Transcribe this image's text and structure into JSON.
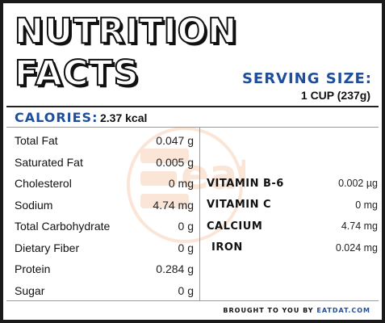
{
  "title": {
    "line1": "NUTRITION",
    "line2": "FACTS"
  },
  "serving": {
    "label": "SERVING SIZE:",
    "value": "1 CUP (237g)"
  },
  "calories": {
    "label": "CALORIES:",
    "value": "2.37 kcal"
  },
  "nutrients": [
    {
      "name": "Total Fat",
      "value": "0.047 g"
    },
    {
      "name": "Saturated Fat",
      "value": "0.005 g"
    },
    {
      "name": "Cholesterol",
      "value": "0 mg"
    },
    {
      "name": "Sodium",
      "value": "4.74 mg"
    },
    {
      "name": "Total Carbohydrate",
      "value": "0 g"
    },
    {
      "name": "Dietary Fiber",
      "value": "0 g"
    },
    {
      "name": "Protein",
      "value": "0.284 g"
    },
    {
      "name": "Sugar",
      "value": "0 g"
    }
  ],
  "vitamins": [
    {
      "name": "VITAMIN B-6",
      "value": "0.002 µg"
    },
    {
      "name": "VITAMIN C",
      "value": "0 mg"
    },
    {
      "name": "CALCIUM",
      "value": "4.74 mg"
    },
    {
      "name": "IRON",
      "value": "0.024 mg"
    }
  ],
  "footer": {
    "prefix": "BROUGHT TO YOU BY",
    "brand": "EATDAT.COM"
  },
  "colors": {
    "accent": "#1f4e9c",
    "watermark": "#e8762a",
    "border": "#1a1a1a"
  },
  "watermark": {
    "icon": "eatdat-logo-watermark",
    "text": "eat"
  }
}
